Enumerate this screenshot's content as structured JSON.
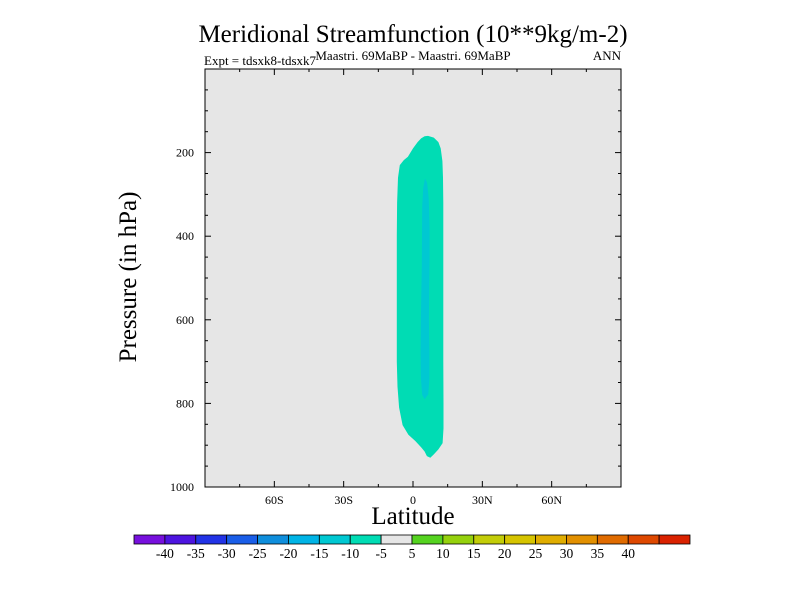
{
  "chart_data": {
    "type": "contour",
    "title": "Meridional Streamfunction (10**9kg/m-2)",
    "subtitle_left": "Expt = tdsxk8-tdsxk7",
    "subtitle_center": "Maastri.  69MaBP - Maastri.  69MaBP",
    "subtitle_right": "ANN",
    "xlabel": "Latitude",
    "ylabel": "Pressure (in hPa)",
    "xlim": [
      -90,
      90
    ],
    "ylim": [
      1000,
      0
    ],
    "x_ticks": [
      {
        "value": -60,
        "label": "60S"
      },
      {
        "value": -30,
        "label": "30S"
      },
      {
        "value": 0,
        "label": "0"
      },
      {
        "value": 30,
        "label": "30N"
      },
      {
        "value": 60,
        "label": "60N"
      }
    ],
    "y_ticks": [
      {
        "value": 200,
        "label": "200"
      },
      {
        "value": 400,
        "label": "400"
      },
      {
        "value": 600,
        "label": "600"
      },
      {
        "value": 800,
        "label": "800"
      },
      {
        "value": 1000,
        "label": "1000"
      }
    ],
    "background_color": "#e6e6e6",
    "contour_regions": [
      {
        "name": "band -10 to -5",
        "color": "#00dcb4",
        "outline": [
          [
            6.5,
            160
          ],
          [
            9,
            164
          ],
          [
            11,
            175
          ],
          [
            12,
            190
          ],
          [
            12.7,
            220
          ],
          [
            13,
            260
          ],
          [
            13.1,
            320
          ],
          [
            13.1,
            400
          ],
          [
            13.1,
            500
          ],
          [
            13.1,
            600
          ],
          [
            13.1,
            700
          ],
          [
            13.2,
            800
          ],
          [
            13.2,
            860
          ],
          [
            12.8,
            895
          ],
          [
            11,
            910
          ],
          [
            9,
            922
          ],
          [
            7.5,
            930
          ],
          [
            6,
            926
          ],
          [
            5,
            915
          ],
          [
            3.5,
            905
          ],
          [
            1,
            890
          ],
          [
            -2,
            875
          ],
          [
            -4.5,
            852
          ],
          [
            -6,
            810
          ],
          [
            -6.7,
            760
          ],
          [
            -7,
            700
          ],
          [
            -7,
            600
          ],
          [
            -7,
            500
          ],
          [
            -7,
            400
          ],
          [
            -6.9,
            320
          ],
          [
            -6.5,
            260
          ],
          [
            -5.7,
            230
          ],
          [
            -4,
            218
          ],
          [
            -2.2,
            210
          ],
          [
            0,
            190
          ],
          [
            2,
            175
          ],
          [
            3.5,
            166
          ],
          [
            5,
            161
          ],
          [
            6.5,
            160
          ]
        ]
      },
      {
        "name": "band -15 to -10",
        "color": "#00c8d2",
        "outline": [
          [
            5.2,
            262
          ],
          [
            6.1,
            272
          ],
          [
            6.8,
            310
          ],
          [
            7.2,
            380
          ],
          [
            7.2,
            450
          ],
          [
            7,
            520
          ],
          [
            6.9,
            600
          ],
          [
            7.1,
            680
          ],
          [
            7.1,
            740
          ],
          [
            6.6,
            778
          ],
          [
            5,
            790
          ],
          [
            4,
            780
          ],
          [
            3.4,
            740
          ],
          [
            3.3,
            680
          ],
          [
            3.4,
            600
          ],
          [
            3.6,
            540
          ],
          [
            3.8,
            470
          ],
          [
            3.9,
            400
          ],
          [
            4,
            330
          ],
          [
            4.4,
            285
          ],
          [
            5.2,
            262
          ]
        ]
      }
    ],
    "colorbar": {
      "colors": [
        "#7710dd",
        "#4d14e0",
        "#2233e6",
        "#1a5ee8",
        "#0f8edc",
        "#00b4e6",
        "#00c8d2",
        "#00dcb4",
        "#e6e6e6",
        "#55d320",
        "#95d10d",
        "#c3cd08",
        "#d6c400",
        "#e0ad00",
        "#e29000",
        "#e06b00",
        "#de4800",
        "#da2200"
      ],
      "labels": [
        "-40",
        "-35",
        "-30",
        "-25",
        "-20",
        "-15",
        "-10",
        "-5",
        "5",
        "10",
        "15",
        "20",
        "25",
        "30",
        "35",
        "40"
      ]
    }
  }
}
